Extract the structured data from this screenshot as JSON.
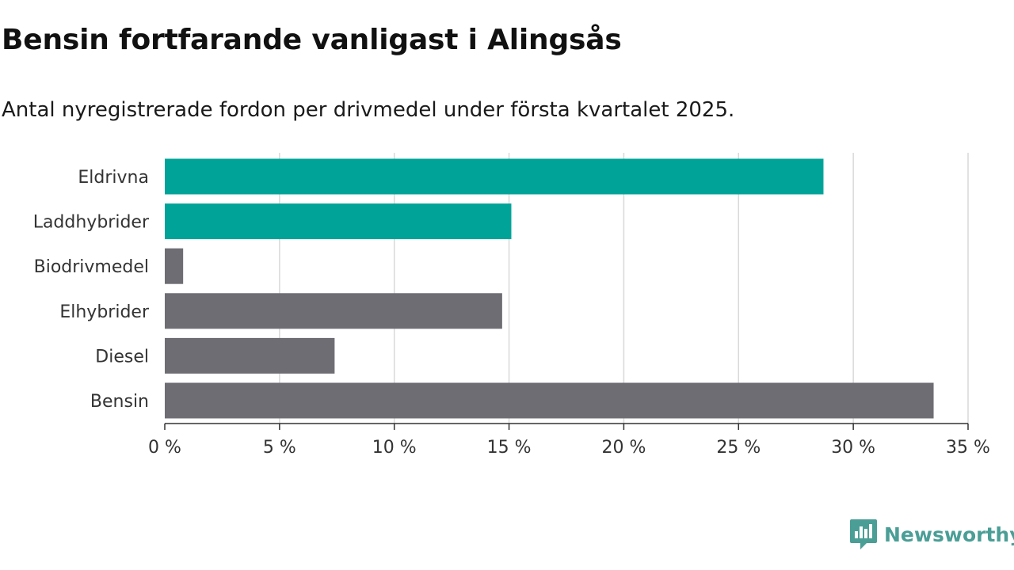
{
  "title": "Bensin fortfarande vanligast i Alingsås",
  "subtitle": "Antal nyregistrerade fordon per drivmedel under första kvartalet 2025.",
  "brand": {
    "name": "Newsworthy",
    "icon": "newsworthy-logo-icon"
  },
  "colors": {
    "highlight": "#00a398",
    "default": "#6e6d73",
    "grid": "#d9d9d9",
    "axis": "#333333"
  },
  "chart_data": {
    "type": "bar",
    "orientation": "horizontal",
    "categories": [
      "Eldrivna",
      "Laddhybrider",
      "Biodrivmedel",
      "Elhybrider",
      "Diesel",
      "Bensin"
    ],
    "values": [
      28.7,
      15.1,
      0.8,
      14.7,
      7.4,
      33.5
    ],
    "highlighted": [
      true,
      true,
      false,
      false,
      false,
      false
    ],
    "xlim": [
      0,
      35
    ],
    "xticks": [
      0,
      5,
      10,
      15,
      20,
      25,
      30,
      35
    ],
    "tick_labels": [
      "0 %",
      "5 %",
      "10 %",
      "15 %",
      "20 %",
      "25 %",
      "30 %",
      "35 %"
    ],
    "grid": true
  }
}
